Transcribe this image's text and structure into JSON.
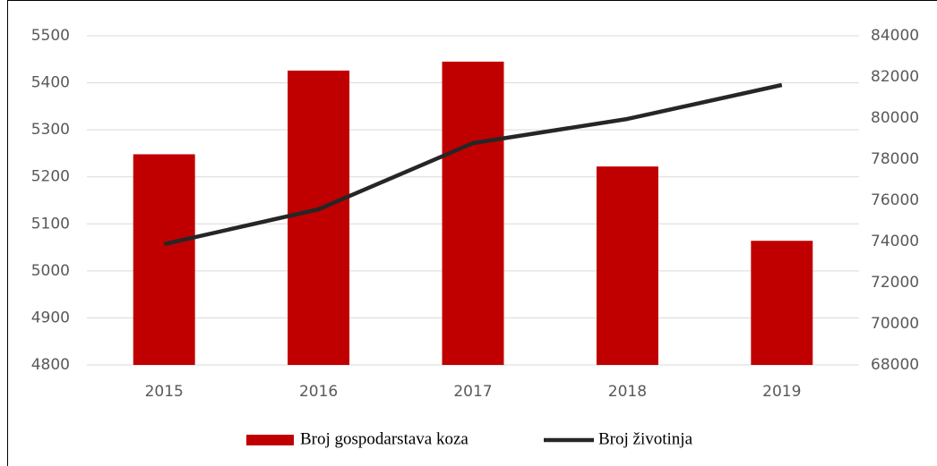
{
  "chart_data": {
    "type": "bar_line",
    "categories": [
      "2015",
      "2016",
      "2017",
      "2018",
      "2019"
    ],
    "series": [
      {
        "name": "Broj gospodarstava koza",
        "type": "bar",
        "color": "#c00000",
        "values": [
          5248,
          5426,
          5445,
          5222,
          5064
        ]
      },
      {
        "name": "Broj životinja",
        "type": "line",
        "axis": "y2",
        "color": "#262626",
        "values": [
          73870,
          75565,
          78783,
          79957,
          81609
        ]
      }
    ],
    "ylim": [
      4800,
      5500
    ],
    "yticks": [
      4800,
      4900,
      5000,
      5100,
      5200,
      5300,
      5400,
      5500
    ],
    "y2lim": [
      68000,
      84000
    ],
    "y2ticks": [
      68000,
      70000,
      72000,
      74000,
      76000,
      78000,
      80000,
      82000,
      84000
    ],
    "grid": true,
    "legend": "bottom"
  }
}
